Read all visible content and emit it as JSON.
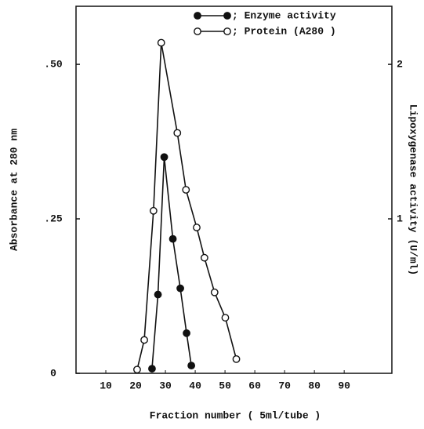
{
  "chart_data": {
    "type": "line",
    "x_label": "Fraction number ( 5ml/tube )",
    "y_label": "Absorbance at 280 nm",
    "y2_label": "Lipoxygenase activity (U/ml)",
    "xlim": [
      0,
      106
    ],
    "xticks": [
      10,
      20,
      30,
      40,
      50,
      60,
      70,
      80,
      90
    ],
    "ylim": [
      0,
      0.594
    ],
    "yticks": [
      0,
      {
        "value": 0.25,
        "label": ".25"
      },
      {
        "value": 0.5,
        "label": ".50"
      }
    ],
    "y2lim": [
      0,
      2.376
    ],
    "y2ticks": [
      1,
      2
    ],
    "legend": "top-right",
    "series": [
      {
        "name": "; Enzyme activity",
        "color": "#111111",
        "marker": "filled",
        "axis": "y2",
        "x": [
          25.5,
          27.5,
          29.6,
          32.5,
          35,
          37.1,
          38.7
        ],
        "values": [
          0.03,
          0.51,
          1.4,
          0.87,
          0.55,
          0.26,
          0.05
        ]
      },
      {
        "name": "; Protein (A280 )",
        "color": "#111111",
        "marker": "open",
        "x": [
          20.5,
          22.9,
          26,
          28.6,
          34,
          36.9,
          40.5,
          43.1,
          46.5,
          50.1,
          53.8
        ],
        "values": [
          0.006,
          0.054,
          0.263,
          0.535,
          0.389,
          0.297,
          0.236,
          0.187,
          0.131,
          0.09,
          0.023
        ]
      }
    ]
  }
}
